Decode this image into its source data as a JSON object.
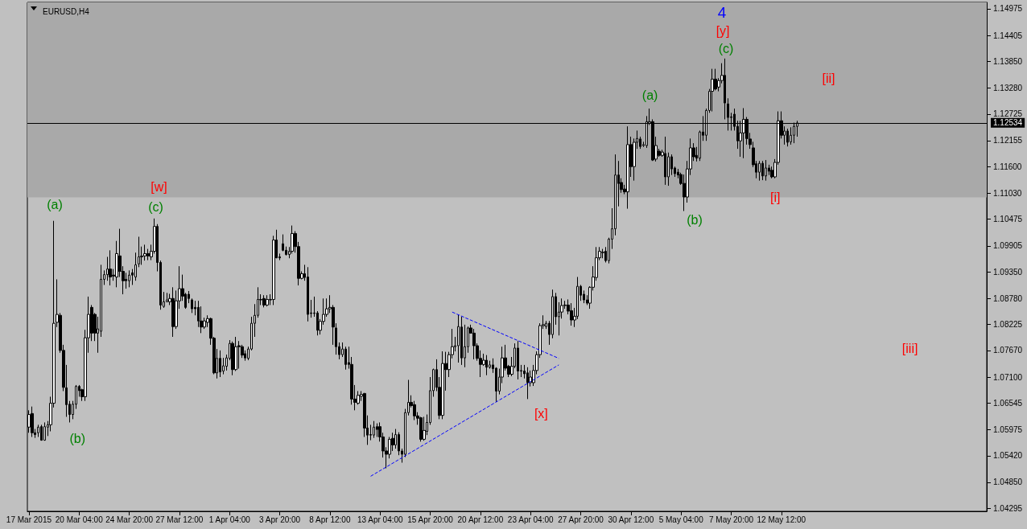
{
  "chart_data": {
    "type": "candlestick",
    "title": "EURUSD,H4",
    "categories": [
      "17 Mar 2015",
      null,
      null,
      null,
      null,
      null,
      null,
      null,
      null,
      null,
      null,
      null,
      null,
      null,
      null,
      null,
      "20 Mar 04:00",
      null,
      null,
      null,
      null,
      null,
      null,
      null,
      null,
      null,
      null,
      null,
      null,
      null,
      null,
      null,
      "24 Mar 20:00",
      null,
      null,
      null,
      null,
      null,
      null,
      null,
      null,
      null,
      null,
      null,
      null,
      null,
      null,
      null,
      "27 Mar 12:00",
      null,
      null,
      null,
      null,
      null,
      null,
      null,
      null,
      null,
      null,
      null,
      null,
      null,
      null,
      null,
      "1 Apr 04:00",
      null,
      null,
      null,
      null,
      null,
      null,
      null,
      null,
      null,
      null,
      null,
      null,
      null,
      null,
      null,
      "3 Apr 20:00",
      null,
      null,
      null,
      null,
      null,
      null,
      null,
      null,
      null,
      null,
      null,
      null,
      null,
      null,
      null,
      "8 Apr 12:00",
      null,
      null,
      null,
      null,
      null,
      null,
      null,
      null,
      null,
      null,
      null,
      null,
      null,
      null,
      null,
      "13 Apr 04:00",
      null,
      null,
      null,
      null,
      null,
      null,
      null,
      null,
      null,
      null,
      null,
      null,
      null,
      null,
      null,
      "15 Apr 20:00",
      null,
      null,
      null,
      null,
      null,
      null,
      null,
      null,
      null,
      null,
      null,
      null,
      null,
      null,
      null,
      "20 Apr 12:00",
      null,
      null,
      null,
      null,
      null,
      null,
      null,
      null,
      null,
      null,
      null,
      null,
      null,
      null,
      null,
      "23 Apr 04:00",
      null,
      null,
      null,
      null,
      null,
      null,
      null,
      null,
      null,
      null,
      null,
      null,
      null,
      null,
      null,
      "27 Apr 20:00",
      null,
      null,
      null,
      null,
      null,
      null,
      null,
      null,
      null,
      null,
      null,
      null,
      null,
      null,
      null,
      "30 Apr 12:00",
      null,
      null,
      null,
      null,
      null,
      null,
      null,
      null,
      null,
      null,
      null,
      null,
      null,
      null,
      null,
      "5 May 04:00",
      null,
      null,
      null,
      null,
      null,
      null,
      null,
      null,
      null,
      null,
      null,
      null,
      null,
      null,
      null,
      "7 May 20:00",
      null,
      null,
      null,
      null,
      null,
      null,
      null,
      null,
      null,
      null,
      null,
      null,
      null,
      null,
      null,
      "12 May 12:00",
      null,
      null,
      null,
      null,
      null,
      null,
      null,
      null,
      null,
      null,
      null,
      null,
      null,
      null,
      null,
      null,
      null,
      null,
      null,
      null,
      null,
      null,
      null,
      null,
      null,
      null,
      null,
      null,
      null,
      null,
      null,
      null,
      null,
      null,
      null,
      null,
      null,
      null,
      null,
      null,
      null,
      null,
      null,
      null,
      null,
      null,
      null,
      null,
      null,
      null,
      null,
      null,
      null,
      null,
      null,
      null,
      null,
      null,
      null,
      null,
      null,
      null,
      null,
      null,
      null
    ],
    "ohlc": [
      [
        1.0603,
        1.0639,
        1.0591,
        1.063
      ],
      [
        1.0632,
        1.0647,
        1.0582,
        1.0591
      ],
      [
        1.0591,
        1.0599,
        1.058,
        1.0587
      ],
      [
        1.0591,
        1.0608,
        1.0582,
        1.0603
      ],
      [
        1.0604,
        1.0608,
        1.0574,
        1.0575
      ],
      [
        1.0575,
        1.0613,
        1.0574,
        1.0604
      ],
      [
        1.0603,
        1.0616,
        1.0584,
        1.0608
      ],
      [
        1.0608,
        1.0668,
        1.0594,
        1.0654
      ],
      [
        1.0654,
        1.1044,
        1.0645,
        1.0825
      ],
      [
        1.0827,
        1.0919,
        1.0817,
        1.0844
      ],
      [
        1.0842,
        1.0847,
        1.0762,
        1.0767
      ],
      [
        1.0767,
        1.0779,
        1.068,
        1.0688
      ],
      [
        1.0687,
        1.0736,
        1.0625,
        1.0651
      ],
      [
        1.0652,
        1.0659,
        1.0613,
        1.063
      ],
      [
        1.063,
        1.0659,
        1.062,
        1.0652
      ],
      [
        1.0652,
        1.0693,
        1.0642,
        1.069
      ],
      [
        1.069,
        1.0693,
        1.0668,
        1.0681
      ],
      [
        1.0683,
        1.0685,
        1.0659,
        1.0668
      ],
      [
        1.0668,
        1.0811,
        1.0659,
        1.0794
      ],
      [
        1.0794,
        1.0882,
        1.0762,
        1.0844
      ],
      [
        1.0859,
        1.0864,
        1.0787,
        1.0804
      ],
      [
        1.0844,
        1.0847,
        1.0787,
        1.0804
      ],
      [
        1.0804,
        1.0839,
        1.0762,
        1.0813
      ],
      [
        1.0808,
        1.095,
        1.0796,
        1.0919
      ],
      [
        1.0919,
        1.0938,
        1.0907,
        1.0929
      ],
      [
        1.0929,
        1.0967,
        1.0916,
        1.0941
      ],
      [
        1.0941,
        1.0981,
        1.0906,
        1.0924
      ],
      [
        1.0928,
        1.0941,
        1.0916,
        1.0926
      ],
      [
        1.0924,
        1.1001,
        1.0902,
        1.0974
      ],
      [
        1.0969,
        1.1027,
        1.0924,
        1.0936
      ],
      [
        1.0936,
        1.0947,
        1.0887,
        1.0916
      ],
      [
        1.0919,
        1.0933,
        1.0899,
        1.0916
      ],
      [
        1.0916,
        1.0938,
        1.0902,
        1.0928
      ],
      [
        1.0933,
        1.0941,
        1.0907,
        1.0928
      ],
      [
        1.0924,
        1.0976,
        1.0916,
        1.095
      ],
      [
        1.0952,
        1.101,
        1.0945,
        1.0967
      ],
      [
        1.0967,
        1.0989,
        1.095,
        1.0969
      ],
      [
        1.0969,
        1.0993,
        1.0959,
        1.0974
      ],
      [
        1.0974,
        1.0984,
        1.096,
        1.0969
      ],
      [
        1.0967,
        1.0993,
        1.096,
        1.0979
      ],
      [
        1.0979,
        1.1049,
        1.0974,
        1.1032
      ],
      [
        1.1032,
        1.1037,
        1.0936,
        1.0955
      ],
      [
        1.0955,
        1.0959,
        1.0854,
        1.0864
      ],
      [
        1.0861,
        1.0892,
        1.0858,
        1.0871
      ],
      [
        1.0871,
        1.089,
        1.087,
        1.0875
      ],
      [
        1.0871,
        1.0888,
        1.0864,
        1.0878
      ],
      [
        1.0878,
        1.0902,
        1.0796,
        1.0818
      ],
      [
        1.0818,
        1.0895,
        1.0813,
        1.0873
      ],
      [
        1.0873,
        1.0947,
        1.0856,
        1.0899
      ],
      [
        1.0899,
        1.0929,
        1.0873,
        1.0883
      ],
      [
        1.0887,
        1.089,
        1.0856,
        1.0859
      ],
      [
        1.0887,
        1.0894,
        1.0868,
        1.0878
      ],
      [
        1.0875,
        1.0878,
        1.0847,
        1.0856
      ],
      [
        1.0859,
        1.0873,
        1.0842,
        1.0856
      ],
      [
        1.0859,
        1.0873,
        1.0817,
        1.083
      ],
      [
        1.083,
        1.0861,
        1.0804,
        1.0817
      ],
      [
        1.0817,
        1.0837,
        1.0813,
        1.083
      ],
      [
        1.0827,
        1.0842,
        1.0817,
        1.0835
      ],
      [
        1.0835,
        1.0837,
        1.0779,
        1.0793
      ],
      [
        1.0793,
        1.0796,
        1.0716,
        1.0719
      ],
      [
        1.0719,
        1.077,
        1.0707,
        1.075
      ],
      [
        1.075,
        1.0767,
        1.071,
        1.0721
      ],
      [
        1.0723,
        1.0751,
        1.0716,
        1.0734
      ],
      [
        1.0733,
        1.0758,
        1.0724,
        1.0751
      ],
      [
        1.075,
        1.0789,
        1.0746,
        1.0782
      ],
      [
        1.0782,
        1.0786,
        1.0714,
        1.0726
      ],
      [
        1.0726,
        1.0796,
        1.0723,
        1.0775
      ],
      [
        1.0777,
        1.0787,
        1.0728,
        1.0775
      ],
      [
        1.0775,
        1.0779,
        1.0751,
        1.0757
      ],
      [
        1.076,
        1.0767,
        1.0745,
        1.0751
      ],
      [
        1.075,
        1.0775,
        1.0746,
        1.077
      ],
      [
        1.077,
        1.0839,
        1.0767,
        1.0825
      ],
      [
        1.0825,
        1.0866,
        1.0796,
        1.0842
      ],
      [
        1.0842,
        1.0902,
        1.0837,
        1.0876
      ],
      [
        1.0875,
        1.0887,
        1.0864,
        1.0876
      ],
      [
        1.0878,
        1.0885,
        1.0859,
        1.0864
      ],
      [
        1.0864,
        1.0885,
        1.0861,
        1.0876
      ],
      [
        1.0875,
        1.0887,
        1.0864,
        1.0876
      ],
      [
        1.0876,
        1.1012,
        1.0864,
        1.1003
      ],
      [
        1.1003,
        1.1025,
        1.0964,
        1.0965
      ],
      [
        1.0967,
        1.0974,
        1.096,
        1.0965
      ],
      [
        1.0995,
        1.1015,
        1.0979,
        1.0981
      ],
      [
        1.0981,
        1.0989,
        1.097,
        1.0972
      ],
      [
        1.0972,
        1.0988,
        1.0964,
        1.0979
      ],
      [
        1.0979,
        1.1034,
        1.0974,
        1.1017
      ],
      [
        1.1017,
        1.1022,
        1.0976,
        1.0989
      ],
      [
        1.0989,
        1.0999,
        1.0906,
        1.0921
      ],
      [
        1.0921,
        1.0936,
        1.0919,
        1.0931
      ],
      [
        1.0931,
        1.095,
        1.0916,
        1.0923
      ],
      [
        1.0924,
        1.0945,
        1.0829,
        1.0844
      ],
      [
        1.0847,
        1.0875,
        1.0837,
        1.0846
      ],
      [
        1.0846,
        1.0882,
        1.0839,
        1.0847
      ],
      [
        1.0847,
        1.0851,
        1.0799,
        1.081
      ],
      [
        1.081,
        1.0834,
        1.0801,
        1.0829
      ],
      [
        1.0829,
        1.0878,
        1.0822,
        1.0844
      ],
      [
        1.0844,
        1.0878,
        1.0839,
        1.0856
      ],
      [
        1.0856,
        1.0885,
        1.0847,
        1.0859
      ],
      [
        1.0859,
        1.0864,
        1.0779,
        1.0817
      ],
      [
        1.0815,
        1.0825,
        1.0758,
        1.0775
      ],
      [
        1.0775,
        1.0784,
        1.0748,
        1.0758
      ],
      [
        1.0758,
        1.0784,
        1.0753,
        1.077
      ],
      [
        1.077,
        1.0775,
        1.0726,
        1.0737
      ],
      [
        1.0741,
        1.0775,
        1.0728,
        1.0737
      ],
      [
        1.0737,
        1.0753,
        1.0651,
        1.0663
      ],
      [
        1.0663,
        1.0693,
        1.0639,
        1.0656
      ],
      [
        1.0654,
        1.068,
        1.0651,
        1.0671
      ],
      [
        1.0669,
        1.068,
        1.0659,
        1.0673
      ],
      [
        1.0675,
        1.0676,
        1.0582,
        1.0601
      ],
      [
        1.0601,
        1.0628,
        1.0565,
        1.0586
      ],
      [
        1.0587,
        1.0608,
        1.0575,
        1.0586
      ],
      [
        1.0586,
        1.0616,
        1.058,
        1.0603
      ],
      [
        1.0604,
        1.0611,
        1.0582,
        1.0598
      ],
      [
        1.0604,
        1.0613,
        1.0572,
        1.0582
      ],
      [
        1.0582,
        1.0591,
        1.0538,
        1.0552
      ],
      [
        1.0552,
        1.056,
        1.0515,
        1.0545
      ],
      [
        1.0545,
        1.0582,
        1.0536,
        1.0577
      ],
      [
        1.0579,
        1.0591,
        1.0552,
        1.0565
      ],
      [
        1.0565,
        1.0599,
        1.0557,
        1.0587
      ],
      [
        1.0587,
        1.0592,
        1.0543,
        1.0552
      ],
      [
        1.0552,
        1.0557,
        1.0527,
        1.0545
      ],
      [
        1.0545,
        1.0642,
        1.0539,
        1.0634
      ],
      [
        1.0634,
        1.0704,
        1.0628,
        1.0656
      ],
      [
        1.0656,
        1.0671,
        1.0645,
        1.0649
      ],
      [
        1.0651,
        1.0659,
        1.0618,
        1.0627
      ],
      [
        1.0627,
        1.0635,
        1.0608,
        1.0622
      ],
      [
        1.0623,
        1.0625,
        1.0572,
        1.0577
      ],
      [
        1.0577,
        1.0625,
        1.0574,
        1.0596
      ],
      [
        1.0594,
        1.063,
        1.0586,
        1.0613
      ],
      [
        1.0613,
        1.071,
        1.0608,
        1.0681
      ],
      [
        1.0681,
        1.0728,
        1.0668,
        1.0726
      ],
      [
        1.0726,
        1.0748,
        1.068,
        1.0688
      ],
      [
        1.0688,
        1.071,
        1.062,
        1.0628
      ],
      [
        1.0628,
        1.0765,
        1.062,
        1.0739
      ],
      [
        1.0739,
        1.0764,
        1.0681,
        1.0726
      ],
      [
        1.0726,
        1.0764,
        1.071,
        1.0758
      ],
      [
        1.0758,
        1.0813,
        1.075,
        1.0775
      ],
      [
        1.0775,
        1.0796,
        1.0765,
        1.0777
      ],
      [
        1.0777,
        1.0844,
        1.0741,
        1.0818
      ],
      [
        1.0817,
        1.0839,
        1.0736,
        1.0751
      ],
      [
        1.0751,
        1.0822,
        1.0731,
        1.0775
      ],
      [
        1.0775,
        1.0818,
        1.0762,
        1.0815
      ],
      [
        1.0815,
        1.0822,
        1.0803,
        1.0804
      ],
      [
        1.0804,
        1.0813,
        1.0748,
        1.0777
      ],
      [
        1.0777,
        1.0782,
        1.0745,
        1.075
      ],
      [
        1.075,
        1.0767,
        1.071,
        1.0737
      ],
      [
        1.0737,
        1.076,
        1.0734,
        1.0746
      ],
      [
        1.0746,
        1.0757,
        1.0714,
        1.0731
      ],
      [
        1.0731,
        1.0745,
        1.0728,
        1.0736
      ],
      [
        1.0736,
        1.075,
        1.0719,
        1.0728
      ],
      [
        1.0729,
        1.0731,
        1.0657,
        1.068
      ],
      [
        1.068,
        1.0728,
        1.0673,
        1.071
      ],
      [
        1.071,
        1.0775,
        1.0697,
        1.0751
      ],
      [
        1.0751,
        1.0779,
        1.0724,
        1.0729
      ],
      [
        1.0733,
        1.0736,
        1.071,
        1.0716
      ],
      [
        1.0716,
        1.0753,
        1.0712,
        1.0733
      ],
      [
        1.0733,
        1.0782,
        1.0729,
        1.0772
      ],
      [
        1.0772,
        1.0787,
        1.0705,
        1.0723
      ],
      [
        1.0724,
        1.0736,
        1.071,
        1.0723
      ],
      [
        1.0723,
        1.0736,
        1.0707,
        1.0717
      ],
      [
        1.0719,
        1.0731,
        1.0663,
        1.0698
      ],
      [
        1.0698,
        1.0724,
        1.069,
        1.071
      ],
      [
        1.0698,
        1.0736,
        1.0691,
        1.0724
      ],
      [
        1.0724,
        1.0765,
        1.0716,
        1.0758
      ],
      [
        1.0758,
        1.0825,
        1.0751,
        1.082
      ],
      [
        1.082,
        1.0842,
        1.0813,
        1.0822
      ],
      [
        1.0818,
        1.083,
        1.0813,
        1.0825
      ],
      [
        1.0825,
        1.083,
        1.0779,
        1.0801
      ],
      [
        1.0801,
        1.0897,
        1.0793,
        1.0882
      ],
      [
        1.0882,
        1.089,
        1.0822,
        1.0839
      ],
      [
        1.0839,
        1.087,
        1.0799,
        1.0849
      ],
      [
        1.0849,
        1.0878,
        1.0835,
        1.0863
      ],
      [
        1.0863,
        1.0873,
        1.0856,
        1.0864
      ],
      [
        1.0864,
        1.0876,
        1.0844,
        1.0851
      ],
      [
        1.0852,
        1.0868,
        1.082,
        1.0832
      ],
      [
        1.0832,
        1.0858,
        1.0817,
        1.084
      ],
      [
        1.084,
        1.0924,
        1.0834,
        1.0904
      ],
      [
        1.0904,
        1.0907,
        1.0873,
        1.0885
      ],
      [
        1.0887,
        1.0895,
        1.0868,
        1.0875
      ],
      [
        1.0875,
        1.0885,
        1.0864,
        1.0868
      ],
      [
        1.0868,
        1.0904,
        1.0856,
        1.0902
      ],
      [
        1.0902,
        1.0947,
        1.0895,
        1.0924
      ],
      [
        1.0923,
        1.0988,
        1.0916,
        1.0965
      ],
      [
        1.0965,
        1.0988,
        1.096,
        1.0979
      ],
      [
        1.0976,
        1.0984,
        1.0964,
        1.0977
      ],
      [
        1.0979,
        1.0988,
        1.0955,
        1.0959
      ],
      [
        1.0959,
        1.1008,
        1.0953,
        1.1005
      ],
      [
        1.1005,
        1.1071,
        1.0984,
        1.1027
      ],
      [
        1.1027,
        1.1186,
        1.1013,
        1.1142
      ],
      [
        1.1142,
        1.1172,
        1.1075,
        1.1124
      ],
      [
        1.1126,
        1.1135,
        1.1104,
        1.1111
      ],
      [
        1.1112,
        1.1121,
        1.1101,
        1.1106
      ],
      [
        1.1106,
        1.1246,
        1.107,
        1.1207
      ],
      [
        1.1207,
        1.1224,
        1.1138,
        1.116
      ],
      [
        1.116,
        1.122,
        1.113,
        1.1212
      ],
      [
        1.1212,
        1.1237,
        1.1198,
        1.122
      ],
      [
        1.1219,
        1.1224,
        1.1198,
        1.1203
      ],
      [
        1.1205,
        1.1213,
        1.1202,
        1.1207
      ],
      [
        1.1205,
        1.1268,
        1.12,
        1.1256
      ],
      [
        1.1253,
        1.1284,
        1.1249,
        1.1256
      ],
      [
        1.1256,
        1.1261,
        1.1172,
        1.1174
      ],
      [
        1.1176,
        1.1224,
        1.1171,
        1.1205
      ],
      [
        1.1193,
        1.1198,
        1.1181,
        1.1184
      ],
      [
        1.1184,
        1.1196,
        1.1181,
        1.1191
      ],
      [
        1.1188,
        1.1224,
        1.1121,
        1.1138
      ],
      [
        1.1138,
        1.119,
        1.1119,
        1.1181
      ],
      [
        1.1181,
        1.1186,
        1.1142,
        1.1155
      ],
      [
        1.1157,
        1.116,
        1.1138,
        1.1145
      ],
      [
        1.1148,
        1.1155,
        1.1135,
        1.1142
      ],
      [
        1.1143,
        1.1147,
        1.1121,
        1.1124
      ],
      [
        1.1124,
        1.1143,
        1.1065,
        1.1095
      ],
      [
        1.1095,
        1.1172,
        1.1083,
        1.1155
      ],
      [
        1.1155,
        1.122,
        1.1142,
        1.12
      ],
      [
        1.12,
        1.121,
        1.1172,
        1.1181
      ],
      [
        1.1184,
        1.1202,
        1.1171,
        1.1178
      ],
      [
        1.1178,
        1.1237,
        1.1172,
        1.1234
      ],
      [
        1.1234,
        1.1268,
        1.1215,
        1.1227
      ],
      [
        1.1227,
        1.1284,
        1.1215,
        1.128
      ],
      [
        1.128,
        1.1326,
        1.1275,
        1.1321
      ],
      [
        1.1321,
        1.1369,
        1.1278,
        1.1347
      ],
      [
        1.1347,
        1.1369,
        1.1323,
        1.1326
      ],
      [
        1.133,
        1.1349,
        1.1321,
        1.1344
      ],
      [
        1.1344,
        1.1381,
        1.1338,
        1.1355
      ],
      [
        1.1355,
        1.1391,
        1.1261,
        1.1296
      ],
      [
        1.1294,
        1.1306,
        1.1237,
        1.1265
      ],
      [
        1.1266,
        1.1275,
        1.1237,
        1.1265
      ],
      [
        1.1272,
        1.1284,
        1.1237,
        1.1246
      ],
      [
        1.1246,
        1.1258,
        1.1198,
        1.1215
      ],
      [
        1.1215,
        1.1258,
        1.1181,
        1.1232
      ],
      [
        1.1232,
        1.1285,
        1.1178,
        1.1261
      ],
      [
        1.1261,
        1.1266,
        1.1207,
        1.122
      ],
      [
        1.1219,
        1.1232,
        1.1198,
        1.1207
      ],
      [
        1.12,
        1.1213,
        1.1159,
        1.1164
      ],
      [
        1.1166,
        1.1172,
        1.1135,
        1.1148
      ],
      [
        1.1148,
        1.1172,
        1.113,
        1.1167
      ],
      [
        1.1167,
        1.1172,
        1.1131,
        1.114
      ],
      [
        1.114,
        1.1174,
        1.113,
        1.1157
      ],
      [
        1.1157,
        1.1164,
        1.1142,
        1.115
      ],
      [
        1.1152,
        1.116,
        1.1135,
        1.1138
      ],
      [
        1.1138,
        1.1176,
        1.1135,
        1.1169
      ],
      [
        1.1169,
        1.1278,
        1.1164,
        1.1258
      ],
      [
        1.1258,
        1.1278,
        1.122,
        1.1227
      ],
      [
        1.1227,
        1.1246,
        1.1207,
        1.1236
      ],
      [
        1.1236,
        1.1241,
        1.1203,
        1.1212
      ],
      [
        1.1213,
        1.1244,
        1.1207,
        1.1227
      ],
      [
        1.1227,
        1.1254,
        1.121,
        1.1246
      ],
      [
        1.1246,
        1.1258,
        1.1224,
        1.12534
      ],
      null,
      null,
      null,
      null,
      null,
      null,
      null,
      null,
      null,
      null,
      null,
      null,
      null,
      null,
      null,
      null,
      null,
      null,
      null,
      null,
      null,
      null,
      null,
      null,
      null,
      null,
      null,
      null,
      null,
      null,
      null,
      null,
      null,
      null,
      null,
      null,
      null,
      null,
      null,
      null,
      null,
      null,
      null,
      null,
      null,
      null,
      null,
      null,
      null,
      null,
      null,
      null,
      null,
      null,
      null,
      null,
      null,
      null,
      null,
      null
    ],
    "ylim": [
      1.0423,
      1.1511
    ],
    "yticks": [
      1.14975,
      1.14405,
      {
        "value": 1.1385,
        "label": "1.13850"
      },
      {
        "value": 1.1328,
        "label": "1.13280"
      },
      1.12725,
      1.12155,
      {
        "value": 1.116,
        "label": "1.11600"
      },
      {
        "value": 1.1103,
        "label": "1.11030"
      },
      1.10475,
      1.09905,
      {
        "value": 1.0935,
        "label": "1.09350"
      },
      {
        "value": 1.0878,
        "label": "1.08780"
      },
      1.08225,
      {
        "value": 1.0767,
        "label": "1.07670"
      },
      {
        "value": 1.071,
        "label": "1.07100"
      },
      1.06545,
      1.05975,
      {
        "value": 1.0542,
        "label": "1.05420"
      },
      {
        "value": 1.0485,
        "label": "1.04850"
      },
      1.04295
    ],
    "series": [
      {
        "type": "line",
        "color": "#0000ff",
        "line_style": "dashed",
        "values": [
          null,
          null,
          null,
          null,
          null,
          null,
          null,
          null,
          null,
          null,
          null,
          null,
          null,
          null,
          null,
          null,
          null,
          null,
          null,
          null,
          null,
          null,
          null,
          null,
          null,
          null,
          null,
          null,
          null,
          null,
          null,
          null,
          null,
          null,
          null,
          null,
          null,
          null,
          null,
          null,
          null,
          null,
          null,
          null,
          null,
          null,
          null,
          null,
          null,
          null,
          null,
          null,
          null,
          null,
          null,
          null,
          null,
          null,
          null,
          null,
          null,
          null,
          null,
          null,
          null,
          null,
          null,
          null,
          null,
          null,
          null,
          null,
          null,
          null,
          null,
          null,
          null,
          null,
          null,
          null,
          null,
          null,
          null,
          null,
          null,
          null,
          null,
          null,
          null,
          null,
          null,
          null,
          null,
          null,
          null,
          null,
          null,
          null,
          null,
          null,
          null,
          null,
          null,
          null,
          null,
          null,
          null,
          null,
          null,
          1.0498,
          null,
          null,
          null,
          null,
          null,
          null,
          null,
          null,
          null,
          null,
          null,
          null,
          null,
          null,
          null,
          null,
          null,
          null,
          null,
          null,
          null,
          null,
          null,
          null,
          null,
          null,
          null,
          null,
          null,
          null,
          null,
          null,
          null,
          null,
          null,
          null,
          null,
          null,
          null,
          null,
          null,
          null,
          null,
          null,
          null,
          null,
          null,
          null,
          null,
          null,
          null,
          null,
          null,
          null,
          null,
          null,
          null,
          null,
          null,
          1.0736,
          null,
          null,
          null,
          null,
          null,
          null,
          null,
          null,
          null,
          null,
          null,
          null,
          null,
          null,
          null,
          null,
          null,
          null,
          null,
          null,
          null,
          null,
          null,
          null,
          null,
          null,
          null,
          null,
          null,
          null,
          null,
          null,
          null,
          null,
          null,
          null,
          null,
          null,
          null,
          null,
          null,
          null,
          null,
          null,
          null,
          null,
          null,
          null,
          null,
          null,
          null,
          null,
          null,
          null,
          null,
          null,
          null,
          null,
          null,
          null,
          null,
          null,
          null,
          null,
          null,
          null,
          null,
          null,
          null,
          null,
          null,
          null,
          null,
          null,
          null,
          null,
          null,
          null,
          null,
          null,
          null,
          null,
          null,
          null,
          null,
          null,
          null,
          null,
          null,
          null,
          null,
          null,
          null,
          null,
          null,
          null,
          null,
          null,
          null,
          null,
          null,
          null,
          null,
          null,
          null,
          null,
          null,
          null,
          null,
          null,
          null,
          null,
          null,
          null,
          null,
          null,
          null,
          null,
          null,
          null,
          null,
          null,
          null,
          null,
          null,
          null,
          null,
          null,
          null,
          null,
          null,
          null,
          null,
          null,
          null,
          null
        ]
      },
      {
        "type": "line",
        "color": "#0000ff",
        "line_style": "dashed",
        "values": [
          null,
          null,
          null,
          null,
          null,
          null,
          null,
          null,
          null,
          null,
          null,
          null,
          null,
          null,
          null,
          null,
          null,
          null,
          null,
          null,
          null,
          null,
          null,
          null,
          null,
          null,
          null,
          null,
          null,
          null,
          null,
          null,
          null,
          null,
          null,
          null,
          null,
          null,
          null,
          null,
          null,
          null,
          null,
          null,
          null,
          null,
          null,
          null,
          null,
          null,
          null,
          null,
          null,
          null,
          null,
          null,
          null,
          null,
          null,
          null,
          null,
          null,
          null,
          null,
          null,
          null,
          null,
          null,
          null,
          null,
          null,
          null,
          null,
          null,
          null,
          null,
          null,
          null,
          null,
          null,
          null,
          null,
          null,
          null,
          null,
          null,
          null,
          null,
          null,
          null,
          null,
          null,
          null,
          null,
          null,
          null,
          null,
          null,
          null,
          null,
          null,
          null,
          null,
          null,
          null,
          null,
          null,
          null,
          null,
          null,
          null,
          null,
          null,
          null,
          null,
          null,
          null,
          null,
          null,
          null,
          null,
          null,
          null,
          null,
          null,
          null,
          null,
          null,
          null,
          null,
          null,
          null,
          null,
          null,
          null,
          1.0849,
          null,
          null,
          null,
          null,
          null,
          null,
          null,
          null,
          null,
          null,
          null,
          null,
          null,
          null,
          null,
          null,
          null,
          null,
          null,
          null,
          null,
          null,
          null,
          null,
          null,
          null,
          null,
          null,
          null,
          null,
          null,
          null,
          null,
          1.075,
          null,
          null,
          null,
          null,
          null,
          null,
          null,
          null,
          null,
          null,
          null,
          null,
          null,
          null,
          null,
          null,
          null,
          null,
          null,
          null,
          null,
          null,
          null,
          null,
          null,
          null,
          null,
          null,
          null,
          null,
          null,
          null,
          null,
          null,
          null,
          null,
          null,
          null,
          null,
          null,
          null,
          null,
          null,
          null,
          null,
          null,
          null,
          null,
          null,
          null,
          null,
          null,
          null,
          null,
          null,
          null,
          null,
          null,
          null,
          null,
          null,
          null,
          null,
          null,
          null,
          null,
          null,
          null,
          null,
          null,
          null,
          null,
          null,
          null,
          null,
          null,
          null,
          null,
          null,
          null,
          null,
          null,
          null,
          null,
          null,
          null,
          null,
          null,
          null,
          null,
          null,
          null,
          null,
          null,
          null,
          null,
          null,
          null,
          null,
          null,
          null,
          null,
          null,
          null,
          null,
          null,
          null,
          null,
          null,
          null,
          null,
          null,
          null,
          null,
          null,
          null,
          null,
          null,
          null,
          null,
          null,
          null,
          null,
          null,
          null,
          null,
          null,
          null,
          null,
          null,
          null,
          null,
          null,
          null,
          null,
          null
        ]
      }
    ],
    "ref_lines": [
      {
        "axis": "y",
        "value": 1.12534,
        "label": "1.12534",
        "color": "#000000"
      }
    ],
    "bands": [
      {
        "axis": "y",
        "from": 1.1094,
        "to": 1.1511,
        "color": "#a9a9a9"
      }
    ],
    "annotations": [
      "(a)",
      "(b)",
      "[w]",
      "(c)",
      "[x]",
      "(a)",
      "(b)",
      "4",
      "[y]",
      "(c)",
      "[i]",
      "[ii]",
      "[iii]"
    ]
  }
}
